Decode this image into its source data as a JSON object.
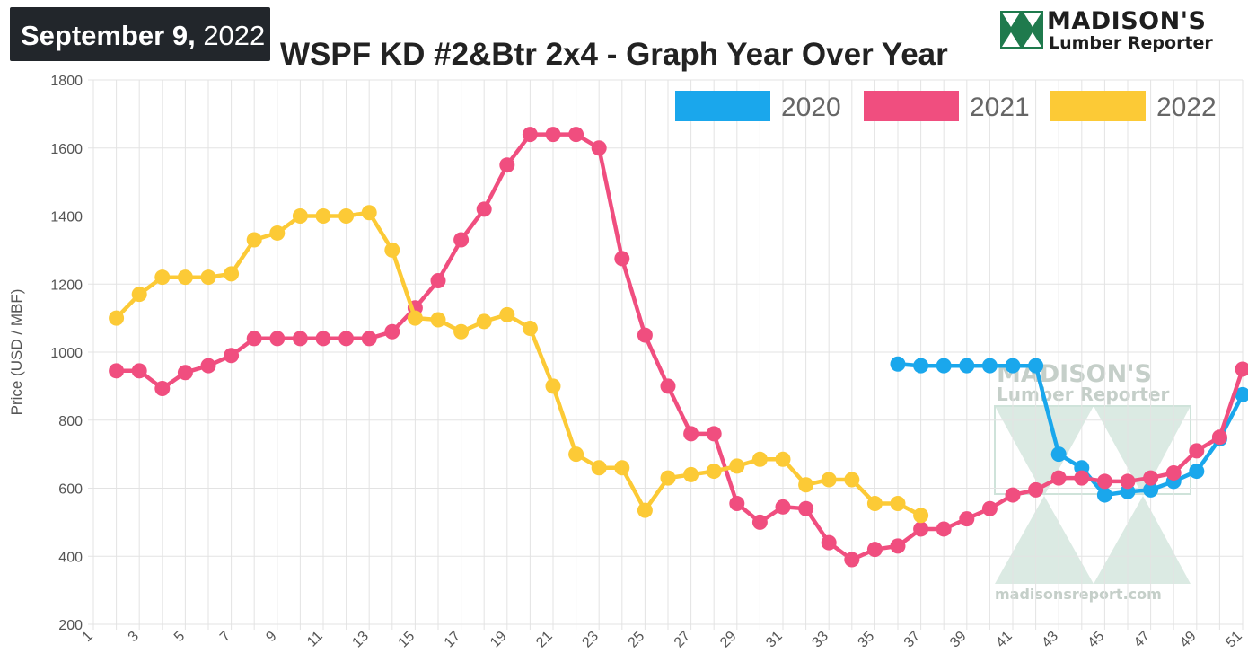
{
  "header": {
    "date_bold": "September 9,",
    "date_year": " 2022",
    "title": "WSPF KD #2&Btr 2x4 - Graph Year Over Year",
    "logo_name": "MADISON'S",
    "logo_sub": "Lumber Reporter"
  },
  "watermark": {
    "name": "MADISON'S",
    "sub": "Lumber Reporter",
    "url": "madisonsreport.com"
  },
  "colors": {
    "series_2020": "#1aa7ec",
    "series_2021": "#f04e7f",
    "series_2022": "#fcca36",
    "grid": "#e3e3e3",
    "watermark": "#cfe3da",
    "logo_green": "#1f7a4d"
  },
  "chart_data": {
    "type": "line",
    "title": "WSPF KD #2&Btr 2x4 - Graph Year Over Year",
    "xlabel": "",
    "ylabel": "Price (USD / MBF)",
    "xlim": [
      1,
      51
    ],
    "ylim": [
      200,
      1800
    ],
    "yticks": [
      200,
      400,
      600,
      800,
      1000,
      1200,
      1400,
      1600,
      1800
    ],
    "xticks": [
      1,
      3,
      5,
      7,
      9,
      11,
      13,
      15,
      17,
      19,
      21,
      23,
      25,
      27,
      29,
      31,
      33,
      35,
      37,
      39,
      41,
      43,
      45,
      47,
      49,
      51
    ],
    "grid": true,
    "legend_position": "top-right",
    "series": [
      {
        "name": "2020",
        "color": "#1aa7ec",
        "points": [
          [
            36,
            965
          ],
          [
            37,
            960
          ],
          [
            38,
            960
          ],
          [
            39,
            960
          ],
          [
            40,
            960
          ],
          [
            41,
            960
          ],
          [
            42,
            960
          ],
          [
            43,
            700
          ],
          [
            44,
            660
          ],
          [
            45,
            580
          ],
          [
            46,
            590
          ],
          [
            47,
            595
          ],
          [
            48,
            620
          ],
          [
            49,
            650
          ],
          [
            50,
            745
          ],
          [
            51,
            875
          ]
        ]
      },
      {
        "name": "2021",
        "color": "#f04e7f",
        "points": [
          [
            2,
            945
          ],
          [
            3,
            945
          ],
          [
            4,
            893
          ],
          [
            5,
            940
          ],
          [
            6,
            960
          ],
          [
            7,
            990
          ],
          [
            8,
            1040
          ],
          [
            9,
            1040
          ],
          [
            10,
            1040
          ],
          [
            11,
            1040
          ],
          [
            12,
            1040
          ],
          [
            13,
            1040
          ],
          [
            14,
            1060
          ],
          [
            15,
            1130
          ],
          [
            16,
            1210
          ],
          [
            17,
            1330
          ],
          [
            18,
            1420
          ],
          [
            19,
            1550
          ],
          [
            20,
            1640
          ],
          [
            21,
            1640
          ],
          [
            22,
            1640
          ],
          [
            23,
            1600
          ],
          [
            24,
            1275
          ],
          [
            25,
            1050
          ],
          [
            26,
            900
          ],
          [
            27,
            760
          ],
          [
            28,
            760
          ],
          [
            29,
            555
          ],
          [
            30,
            500
          ],
          [
            31,
            545
          ],
          [
            32,
            540
          ],
          [
            33,
            440
          ],
          [
            34,
            390
          ],
          [
            35,
            420
          ],
          [
            36,
            430
          ],
          [
            37,
            480
          ],
          [
            38,
            480
          ],
          [
            39,
            510
          ],
          [
            40,
            540
          ],
          [
            41,
            580
          ],
          [
            42,
            595
          ],
          [
            43,
            630
          ],
          [
            44,
            630
          ],
          [
            45,
            620
          ],
          [
            46,
            620
          ],
          [
            47,
            630
          ],
          [
            48,
            645
          ],
          [
            49,
            710
          ],
          [
            50,
            750
          ],
          [
            51,
            950
          ]
        ]
      },
      {
        "name": "2022",
        "color": "#fcca36",
        "points": [
          [
            2,
            1100
          ],
          [
            3,
            1170
          ],
          [
            4,
            1220
          ],
          [
            5,
            1220
          ],
          [
            6,
            1220
          ],
          [
            7,
            1230
          ],
          [
            8,
            1330
          ],
          [
            9,
            1350
          ],
          [
            10,
            1400
          ],
          [
            11,
            1400
          ],
          [
            12,
            1400
          ],
          [
            13,
            1410
          ],
          [
            14,
            1300
          ],
          [
            15,
            1100
          ],
          [
            16,
            1095
          ],
          [
            17,
            1060
          ],
          [
            18,
            1090
          ],
          [
            19,
            1110
          ],
          [
            20,
            1070
          ],
          [
            21,
            900
          ],
          [
            22,
            700
          ],
          [
            23,
            660
          ],
          [
            24,
            660
          ],
          [
            25,
            535
          ],
          [
            26,
            630
          ],
          [
            27,
            640
          ],
          [
            28,
            650
          ],
          [
            29,
            665
          ],
          [
            30,
            685
          ],
          [
            31,
            685
          ],
          [
            32,
            610
          ],
          [
            33,
            625
          ],
          [
            34,
            625
          ],
          [
            35,
            555
          ],
          [
            36,
            555
          ],
          [
            37,
            520
          ]
        ]
      }
    ]
  }
}
